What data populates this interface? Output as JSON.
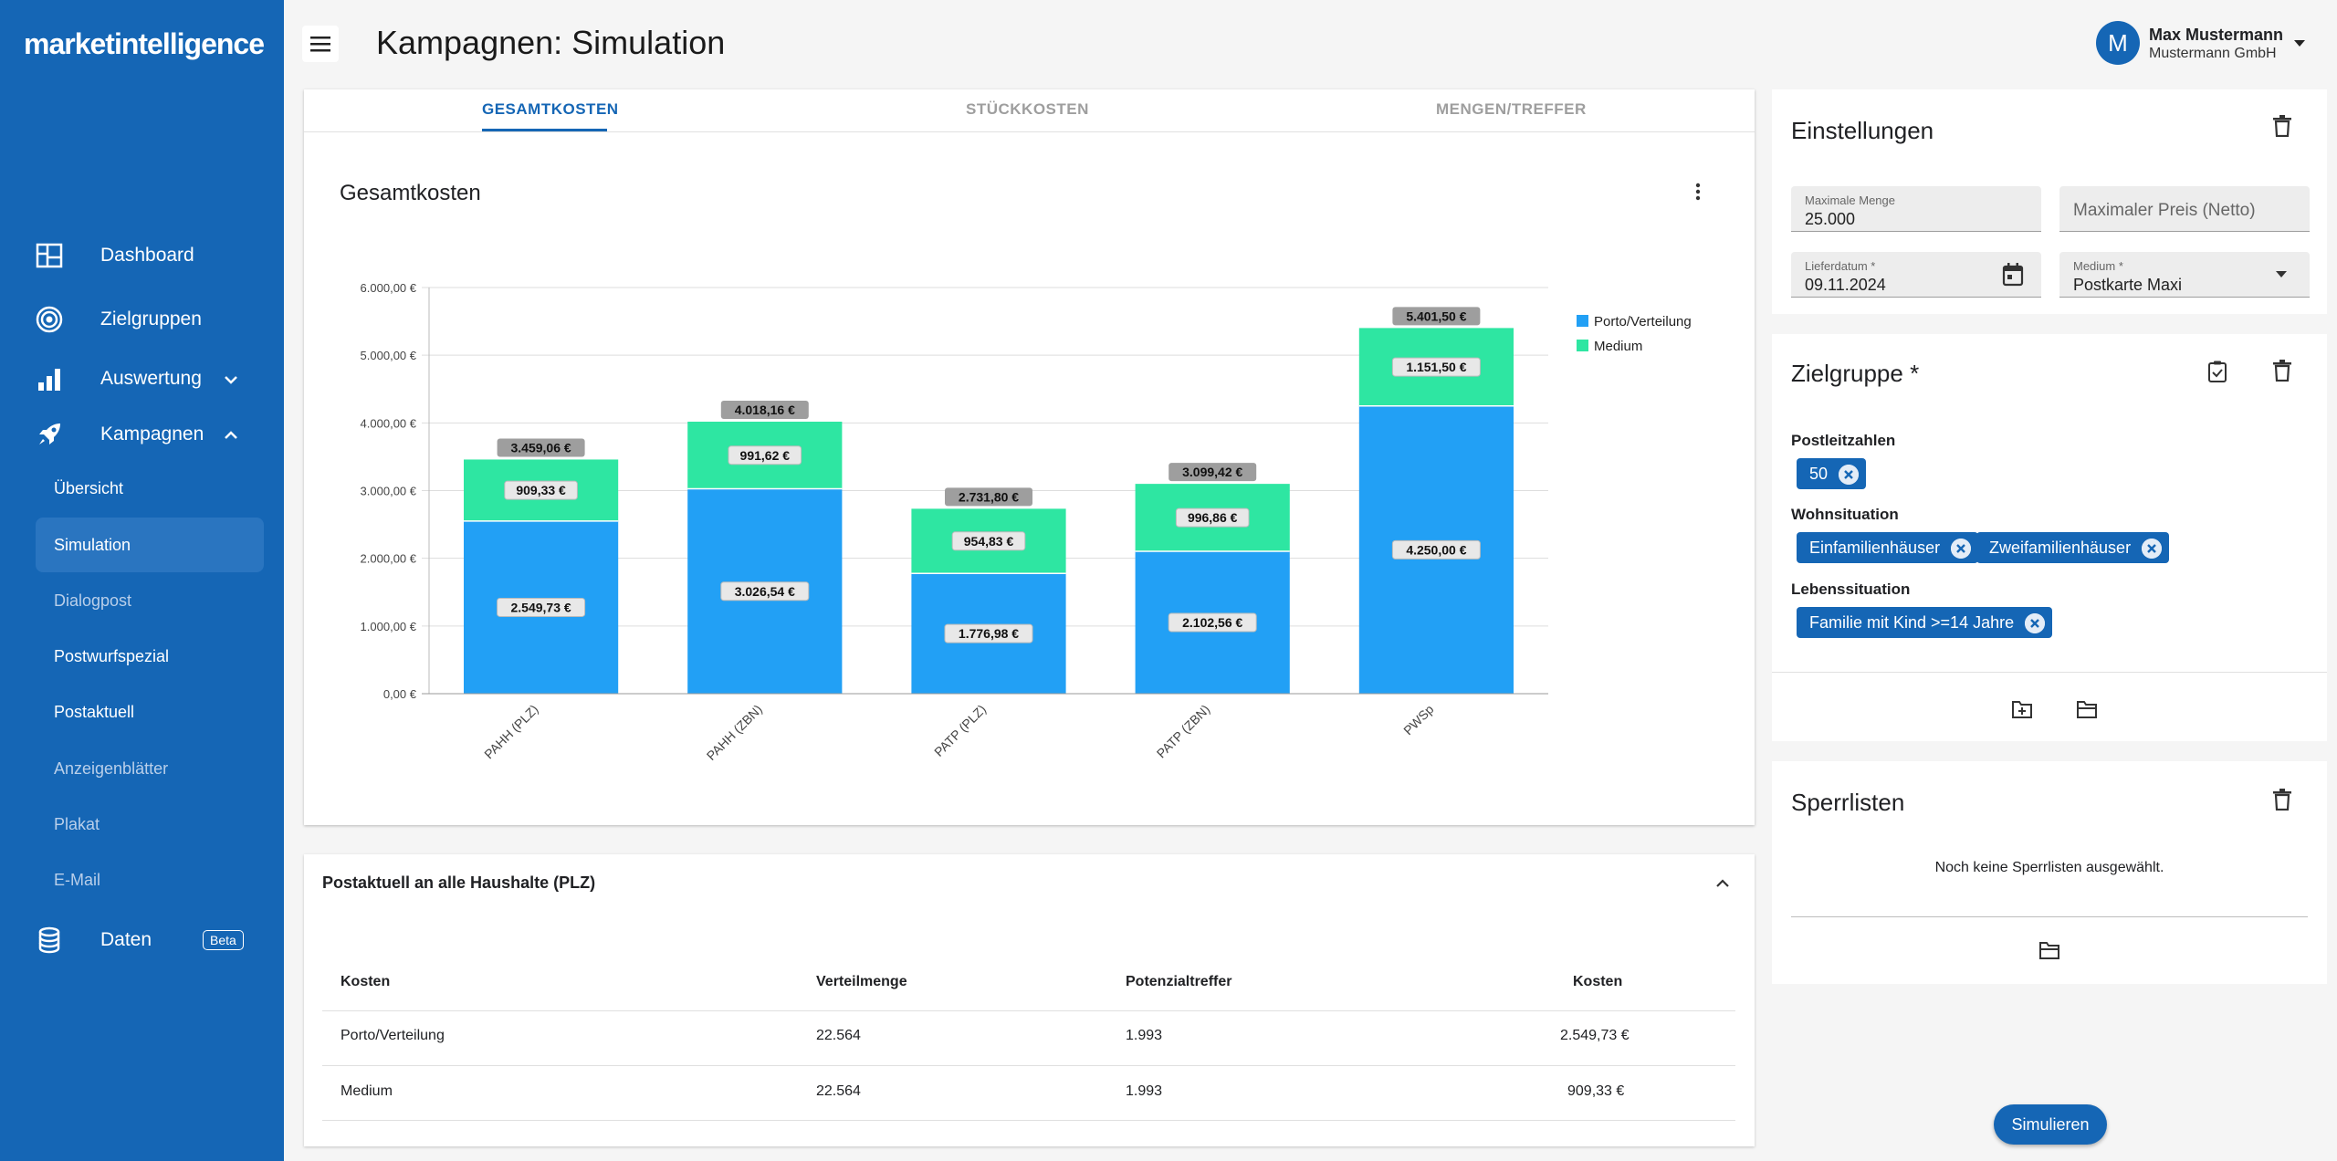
{
  "app": {
    "logo": "marketintelligence"
  },
  "nav": {
    "dashboard": "Dashboard",
    "zielgruppen": "Zielgruppen",
    "auswertung": "Auswertung",
    "kampagnen": "Kampagnen",
    "sub": [
      "Übersicht",
      "Simulation",
      "Dialogpost",
      "Postwurfspezial",
      "Postaktuell",
      "Anzeigenblätter",
      "Plakat",
      "E-Mail"
    ],
    "daten": "Daten",
    "beta": "Beta"
  },
  "header": {
    "title": "Kampagnen: Simulation",
    "avatar_letter": "M",
    "user_name": "Max Mustermann",
    "user_org": "Mustermann GmbH"
  },
  "tabs": [
    "GESAMTKOSTEN",
    "STÜCKKOSTEN",
    "MENGEN/TREFFER"
  ],
  "chart_title": "Gesamtkosten",
  "chart_data": {
    "type": "bar",
    "stacked": true,
    "categories": [
      "PAHH (PLZ)",
      "PAHH (ZBN)",
      "PATP (PLZ)",
      "PATP (ZBN)",
      "PWSp"
    ],
    "series": [
      {
        "name": "Porto/Verteilung",
        "color": "#22a0f5",
        "values": [
          2549.73,
          3026.54,
          1776.98,
          2102.56,
          4250.0
        ],
        "labels": [
          "2.549,73 €",
          "3.026,54 €",
          "1.776,98 €",
          "2.102,56 €",
          "4.250,00 €"
        ]
      },
      {
        "name": "Medium",
        "color": "#2ee6a2",
        "values": [
          909.33,
          991.62,
          954.83,
          996.86,
          1151.5
        ],
        "labels": [
          "909,33 €",
          "991,62 €",
          "954,83 €",
          "996,86 €",
          "1.151,50 €"
        ]
      }
    ],
    "totals": [
      "3.459,06 €",
      "4.018,16 €",
      "2.731,80 €",
      "3.099,42 €",
      "5.401,50 €"
    ],
    "ylim": [
      0,
      6000
    ],
    "yticks": [
      0,
      1000,
      2000,
      3000,
      4000,
      5000,
      6000
    ],
    "ytick_labels": [
      "0,00 €",
      "1.000,00 €",
      "2.000,00 €",
      "3.000,00 €",
      "4.000,00 €",
      "5.000,00 €",
      "6.000,00 €"
    ],
    "legend": "top-right",
    "grid": true
  },
  "table": {
    "title": "Postaktuell an alle Haushalte (PLZ)",
    "headers": [
      "Kosten",
      "Verteilmenge",
      "Potenzialtreffer",
      "Kosten"
    ],
    "rows": [
      [
        "Porto/Verteilung",
        "22.564",
        "1.993",
        "2.549,73 €"
      ],
      [
        "Medium",
        "22.564",
        "1.993",
        "909,33 €"
      ]
    ]
  },
  "settings": {
    "title": "Einstellungen",
    "max_menge_label": "Maximale Menge",
    "max_menge_value": "25.000",
    "max_preis_placeholder": "Maximaler Preis (Netto)",
    "lieferdatum_label": "Lieferdatum *",
    "lieferdatum_value": "09.11.2024",
    "medium_label": "Medium *",
    "medium_value": "Postkarte Maxi"
  },
  "zielgruppe": {
    "title": "Zielgruppe *",
    "plz_label": "Postleitzahlen",
    "plz_chips": [
      "50"
    ],
    "wohn_label": "Wohnsituation",
    "wohn_chips": [
      "Einfamilienhäuser",
      "Zweifamilienhäuser"
    ],
    "leben_label": "Lebenssituation",
    "leben_chips": [
      "Familie mit Kind >=14 Jahre"
    ]
  },
  "sperrlisten": {
    "title": "Sperrlisten",
    "empty": "Noch keine Sperrlisten ausgewählt."
  },
  "simulate_label": "Simulieren"
}
